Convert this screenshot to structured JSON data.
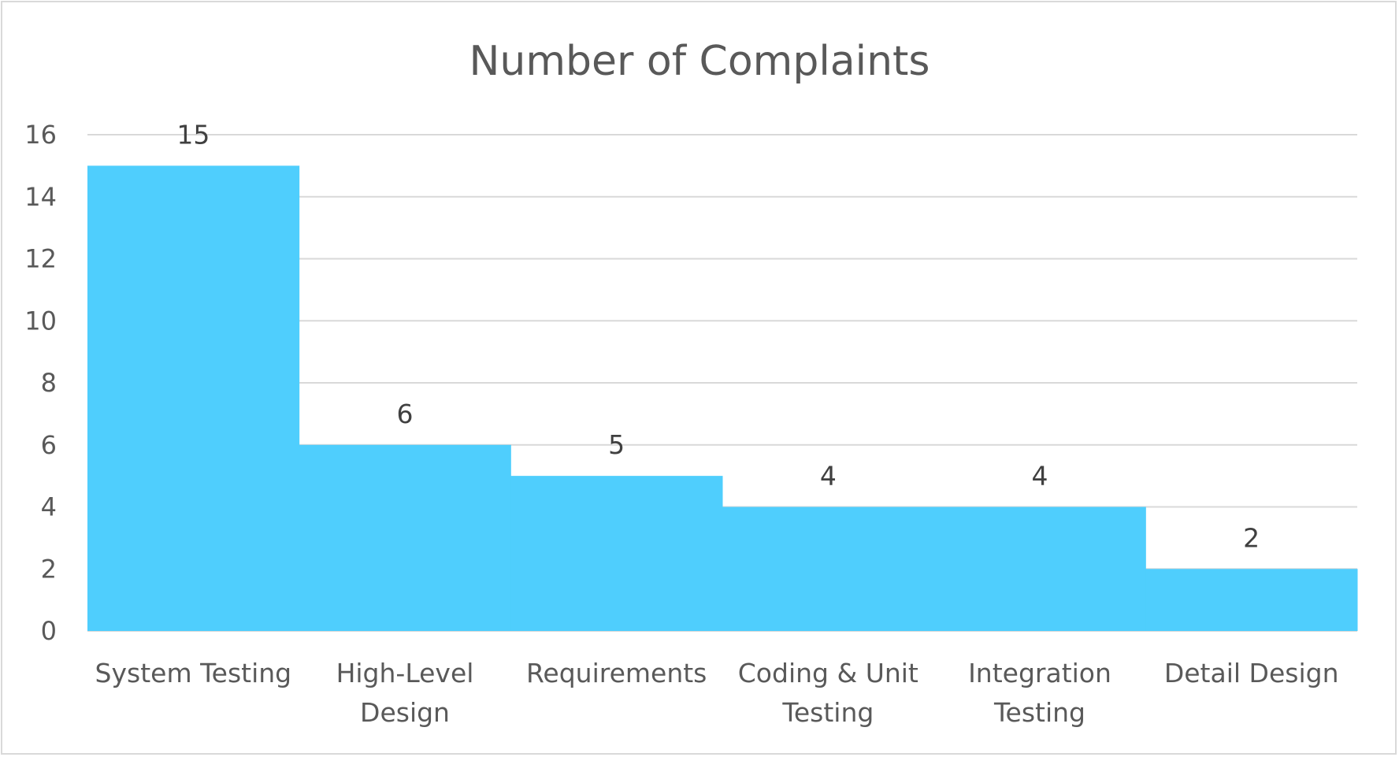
{
  "chart_data": {
    "type": "bar",
    "title": "Number of Complaints",
    "categories": [
      "System Testing",
      "High-Level Design",
      "Requirements",
      "Coding & Unit Testing",
      "Integration Testing",
      "Detail Design"
    ],
    "category_lines": [
      [
        "System Testing"
      ],
      [
        "High-Level",
        "Design"
      ],
      [
        "Requirements"
      ],
      [
        "Coding & Unit",
        "Testing"
      ],
      [
        "Integration",
        "Testing"
      ],
      [
        "Detail Design"
      ]
    ],
    "values": [
      15,
      6,
      5,
      4,
      4,
      2
    ],
    "data_labels": [
      "15",
      "6",
      "5",
      "4",
      "4",
      "2"
    ],
    "yticks": [
      0,
      2,
      4,
      6,
      8,
      10,
      12,
      14,
      16
    ],
    "ylim": [
      0,
      16
    ],
    "xlabel": "",
    "ylabel": "",
    "grid": true,
    "legend": "none",
    "bar_gap": 0,
    "colors": {
      "bar": "#4fcefd",
      "gridline": "#d9d9d9",
      "text": "#595959",
      "label": "#404040"
    }
  }
}
